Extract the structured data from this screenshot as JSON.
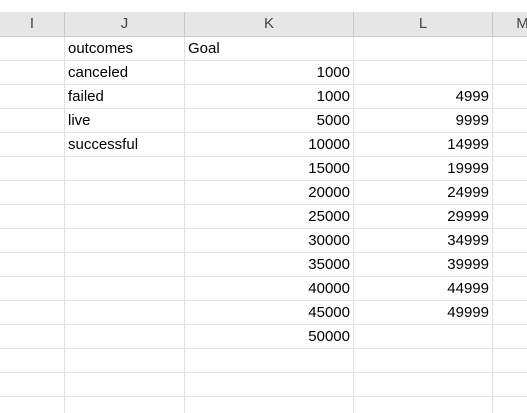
{
  "columns": [
    "I",
    "J",
    "K",
    "L",
    "M"
  ],
  "rows": [
    {
      "j": "outcomes",
      "k": "Goal",
      "l": ""
    },
    {
      "j": "canceled",
      "k": "1000",
      "l": ""
    },
    {
      "j": "failed",
      "k": "1000",
      "l": "4999"
    },
    {
      "j": "live",
      "k": "5000",
      "l": "9999"
    },
    {
      "j": "successful",
      "k": "10000",
      "l": "14999"
    },
    {
      "j": "",
      "k": "15000",
      "l": "19999"
    },
    {
      "j": "",
      "k": "20000",
      "l": "24999"
    },
    {
      "j": "",
      "k": "25000",
      "l": "29999"
    },
    {
      "j": "",
      "k": "30000",
      "l": "34999"
    },
    {
      "j": "",
      "k": "35000",
      "l": "39999"
    },
    {
      "j": "",
      "k": "40000",
      "l": "44999"
    },
    {
      "j": "",
      "k": "45000",
      "l": "49999"
    },
    {
      "j": "",
      "k": "50000",
      "l": ""
    },
    {
      "j": "",
      "k": "",
      "l": ""
    },
    {
      "j": "",
      "k": "",
      "l": ""
    },
    {
      "j": "",
      "k": "",
      "l": ""
    }
  ]
}
